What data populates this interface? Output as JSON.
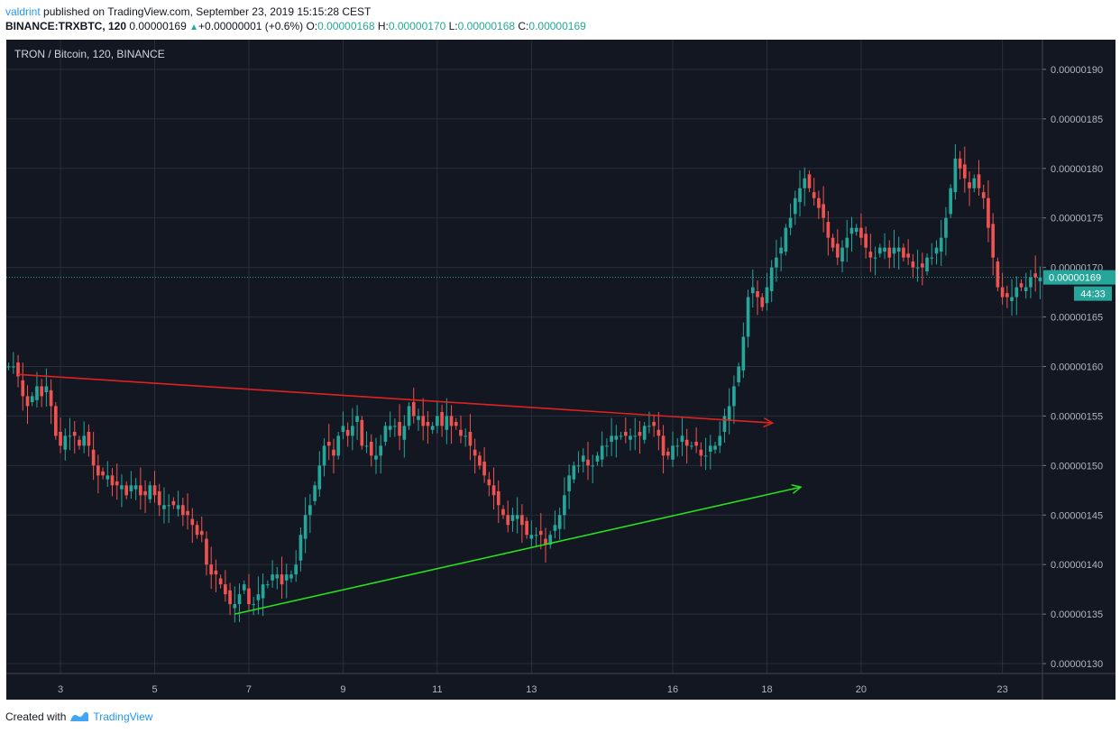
{
  "header": {
    "author": "valdrint",
    "published_text": "published on TradingView.com, September 23, 2019 15:15:28 CEST",
    "symbol": "BINANCE:TRXBTC, 120",
    "last_price": "0.00000169",
    "change": "+0.00000001 (+0.6%)",
    "o_label": "O:",
    "o_value": "0.00000168",
    "h_label": "H:",
    "h_value": "0.00000170",
    "l_label": "L:",
    "l_value": "0.00000168",
    "c_label": "C:",
    "c_value": "0.00000169"
  },
  "footer": {
    "created_with": "Created with",
    "brand": "TradingView"
  },
  "colors": {
    "background": "#131722",
    "grid": "#2a2e39",
    "axis_text": "#b2b5be",
    "up": "#26a69a",
    "down": "#ef5350",
    "resistance_line": "#e0221f",
    "support_line": "#27e01f",
    "price_line": "#26a69a",
    "price_badge": "#26a69a"
  },
  "chart_data": {
    "type": "candlestick",
    "title": "TRON / Bitcoin, 120, BINANCE",
    "y_tick_labels": [
      "0.00000130",
      "0.00000135",
      "0.00000140",
      "0.00000145",
      "0.00000150",
      "0.00000155",
      "0.00000160",
      "0.00000165",
      "0.00000170",
      "0.00000175",
      "0.00000180",
      "0.00000185",
      "0.00000190"
    ],
    "y_ticks": [
      130,
      135,
      140,
      145,
      150,
      155,
      160,
      165,
      170,
      175,
      180,
      185,
      190
    ],
    "y_unit": "satoshi (x1e-8 BTC)",
    "ylim": [
      129,
      193
    ],
    "x_tick_labels": [
      "3",
      "5",
      "7",
      "9",
      "11",
      "13",
      "16",
      "18",
      "20",
      "23"
    ],
    "x_ticks_bar_index": [
      11,
      31,
      51,
      71,
      91,
      111,
      141,
      161,
      181,
      211
    ],
    "bar_count": 220,
    "current_price": 169,
    "current_price_label": "0.00000169",
    "countdown": "44:33",
    "closes": [
      160,
      160,
      159,
      157,
      156,
      157,
      158,
      157,
      158,
      156,
      153,
      152,
      153,
      153,
      153,
      152,
      153,
      152,
      150,
      149,
      149,
      149,
      148,
      148,
      148,
      147,
      148,
      148,
      147,
      147,
      148,
      147,
      146,
      146,
      146,
      146,
      146,
      145,
      145,
      144,
      143,
      143,
      140,
      139,
      139,
      138,
      137,
      136,
      136,
      137,
      138,
      136,
      136,
      137,
      138,
      138,
      139,
      139,
      138,
      139,
      139,
      140,
      143,
      145,
      146,
      148,
      150,
      152,
      152,
      151,
      153,
      154,
      153,
      154,
      155,
      152,
      152,
      151,
      151,
      152,
      154,
      154,
      154,
      153,
      154,
      156,
      155,
      155,
      154,
      154,
      154,
      155,
      154,
      155,
      154,
      154,
      153,
      153,
      152,
      151,
      150,
      149,
      148,
      147,
      146,
      145,
      144,
      145,
      145,
      144,
      143,
      143,
      143,
      143,
      142,
      143,
      144,
      145,
      147,
      149,
      150,
      150,
      151,
      150,
      150,
      151,
      152,
      152,
      153,
      153,
      153,
      153,
      153,
      153,
      153,
      154,
      154,
      154,
      153,
      151,
      151,
      152,
      152,
      153,
      152,
      152,
      152,
      151,
      151,
      152,
      152,
      153,
      155,
      156,
      158,
      160,
      163,
      167,
      168,
      167,
      166,
      168,
      170,
      171,
      172,
      174,
      175,
      177,
      178,
      179,
      178,
      177,
      176,
      175,
      173,
      172,
      171,
      172,
      173,
      174,
      174,
      173,
      172,
      171,
      171,
      172,
      172,
      171,
      172,
      172,
      171,
      171,
      170,
      170,
      170,
      171,
      171,
      172,
      173,
      175,
      178,
      181,
      180,
      179,
      178,
      179,
      178,
      177,
      174,
      171,
      168,
      167,
      167,
      167,
      168,
      168,
      168,
      169,
      169,
      169
    ],
    "lines": [
      {
        "name": "resistance",
        "from": {
          "bar": 2,
          "price": 159.2
        },
        "to": {
          "bar": 162,
          "price": 154.3
        }
      },
      {
        "name": "support",
        "from": {
          "bar": 48,
          "price": 135
        },
        "to": {
          "bar": 168,
          "price": 147.8
        }
      }
    ]
  }
}
